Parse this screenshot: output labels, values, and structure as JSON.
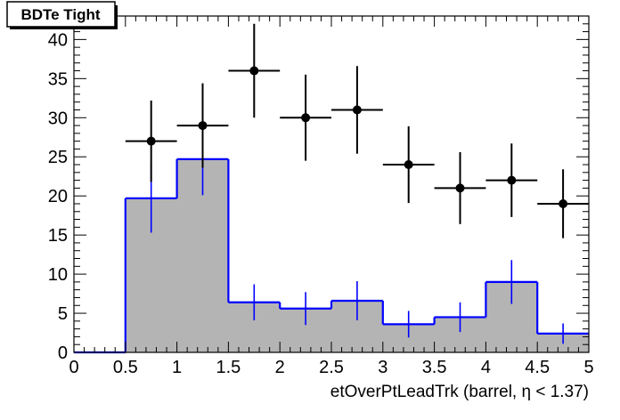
{
  "chart_data": {
    "type": "bar",
    "title": "BDTe Tight",
    "xlabel": "etOverPtLeadTrk (barrel,   η < 1.37)",
    "ylabel": "",
    "xlim": [
      0,
      5
    ],
    "ylim": [
      0,
      43
    ],
    "x_ticks": [
      "0",
      "0.5",
      "1",
      "1.5",
      "2",
      "2.5",
      "3",
      "3.5",
      "4",
      "4.5",
      "5"
    ],
    "y_ticks": [
      "0",
      "5",
      "10",
      "15",
      "20",
      "25",
      "30",
      "35",
      "40"
    ],
    "bin_edges": [
      0,
      0.5,
      1.0,
      1.5,
      2.0,
      2.5,
      3.0,
      3.5,
      4.0,
      4.5,
      5.0
    ],
    "series": [
      {
        "kind": "histogram",
        "fill": "#b4b4b4",
        "line": "#0000ff",
        "values": [
          0,
          19.7,
          24.7,
          6.4,
          5.6,
          6.6,
          3.6,
          4.5,
          9.0,
          2.4
        ],
        "errors": [
          0,
          4.4,
          4.6,
          2.3,
          2.1,
          2.5,
          1.7,
          1.9,
          2.8,
          1.3
        ]
      },
      {
        "kind": "points",
        "color": "#000000",
        "x": [
          0.75,
          1.25,
          1.75,
          2.25,
          2.75,
          3.25,
          3.75,
          4.25,
          4.75
        ],
        "values": [
          27,
          29,
          36,
          30,
          31,
          24,
          21,
          22,
          19
        ],
        "errors": [
          5.2,
          5.4,
          6.0,
          5.5,
          5.6,
          4.9,
          4.6,
          4.7,
          4.4
        ]
      }
    ],
    "grid": false,
    "legend": "none"
  }
}
